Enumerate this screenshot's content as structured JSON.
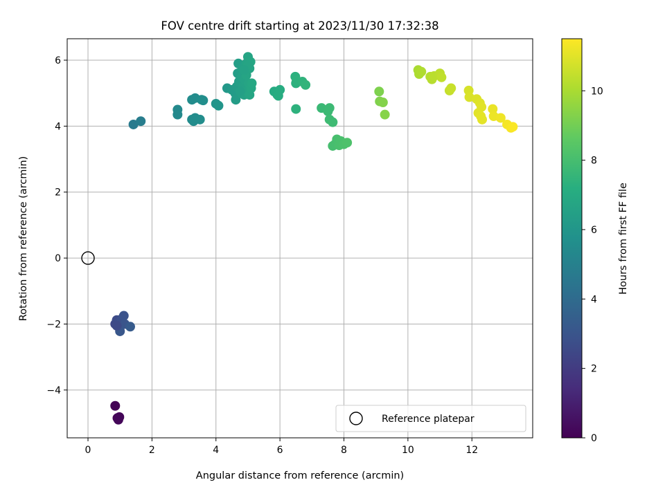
{
  "chart_data": {
    "type": "scatter",
    "title": "FOV centre drift starting at 2023/11/30 17:32:38",
    "xlabel": "Angular distance from reference (arcmin)",
    "ylabel": "Rotation from reference (arcmin)",
    "xlim": [
      -0.65,
      13.9
    ],
    "ylim": [
      -5.45,
      6.65
    ],
    "xticks": [
      0,
      2,
      4,
      6,
      8,
      10,
      12
    ],
    "yticks": [
      -4,
      -2,
      0,
      2,
      4,
      6
    ],
    "xtick_labels": [
      "0",
      "2",
      "4",
      "6",
      "8",
      "10",
      "12"
    ],
    "ytick_labels": [
      "−4",
      "−2",
      "0",
      "2",
      "4",
      "6"
    ],
    "grid": true,
    "legend": {
      "position": "lower-right",
      "entries": [
        "Reference platepar"
      ]
    },
    "reference_point": {
      "x": 0,
      "y": 0,
      "marker": "open-circle"
    },
    "colormap": "viridis",
    "colorbar": {
      "label": "Hours from first FF file",
      "range": [
        0,
        11.5
      ],
      "ticks": [
        0,
        2,
        4,
        6,
        8,
        10
      ],
      "tick_labels": [
        "0",
        "2",
        "4",
        "6",
        "8",
        "10"
      ]
    },
    "points": [
      {
        "x": 0.85,
        "y": -4.48,
        "c": 0.05
      },
      {
        "x": 0.92,
        "y": -4.85,
        "c": 0.1
      },
      {
        "x": 0.98,
        "y": -4.82,
        "c": 0.15
      },
      {
        "x": 0.95,
        "y": -4.9,
        "c": 0.2
      },
      {
        "x": 0.85,
        "y": -2.0,
        "c": 2.5
      },
      {
        "x": 0.9,
        "y": -1.88,
        "c": 2.6
      },
      {
        "x": 0.98,
        "y": -1.95,
        "c": 2.7
      },
      {
        "x": 1.05,
        "y": -1.85,
        "c": 2.8
      },
      {
        "x": 1.12,
        "y": -1.75,
        "c": 2.9
      },
      {
        "x": 1.15,
        "y": -2.0,
        "c": 3.0
      },
      {
        "x": 1.0,
        "y": -2.22,
        "c": 3.1
      },
      {
        "x": 1.32,
        "y": -2.08,
        "c": 3.3
      },
      {
        "x": 0.9,
        "y": -2.05,
        "c": 2.55
      },
      {
        "x": 1.42,
        "y": 4.05,
        "c": 4.7
      },
      {
        "x": 1.65,
        "y": 4.15,
        "c": 4.8
      },
      {
        "x": 2.8,
        "y": 4.5,
        "c": 5.4
      },
      {
        "x": 2.8,
        "y": 4.35,
        "c": 5.4
      },
      {
        "x": 3.25,
        "y": 4.8,
        "c": 5.5
      },
      {
        "x": 3.35,
        "y": 4.85,
        "c": 5.5
      },
      {
        "x": 3.25,
        "y": 4.2,
        "c": 5.45
      },
      {
        "x": 3.3,
        "y": 4.15,
        "c": 5.5
      },
      {
        "x": 3.35,
        "y": 4.25,
        "c": 5.5
      },
      {
        "x": 3.5,
        "y": 4.2,
        "c": 5.55
      },
      {
        "x": 3.55,
        "y": 4.8,
        "c": 5.6
      },
      {
        "x": 3.6,
        "y": 4.78,
        "c": 5.6
      },
      {
        "x": 4.0,
        "y": 4.68,
        "c": 5.9
      },
      {
        "x": 4.08,
        "y": 4.62,
        "c": 5.95
      },
      {
        "x": 4.35,
        "y": 5.15,
        "c": 6.1
      },
      {
        "x": 4.5,
        "y": 5.1,
        "c": 6.2
      },
      {
        "x": 4.6,
        "y": 5.0,
        "c": 6.25
      },
      {
        "x": 4.62,
        "y": 4.8,
        "c": 6.3
      },
      {
        "x": 4.65,
        "y": 5.2,
        "c": 6.3
      },
      {
        "x": 4.68,
        "y": 5.6,
        "c": 6.35
      },
      {
        "x": 4.7,
        "y": 5.9,
        "c": 6.4
      },
      {
        "x": 4.72,
        "y": 5.35,
        "c": 6.4
      },
      {
        "x": 4.78,
        "y": 5.0,
        "c": 6.45
      },
      {
        "x": 4.8,
        "y": 5.5,
        "c": 6.5
      },
      {
        "x": 4.82,
        "y": 5.75,
        "c": 6.5
      },
      {
        "x": 4.85,
        "y": 5.2,
        "c": 6.55
      },
      {
        "x": 4.88,
        "y": 4.95,
        "c": 6.55
      },
      {
        "x": 4.9,
        "y": 5.4,
        "c": 6.6
      },
      {
        "x": 4.92,
        "y": 5.65,
        "c": 6.6
      },
      {
        "x": 4.95,
        "y": 5.9,
        "c": 6.65
      },
      {
        "x": 4.97,
        "y": 5.05,
        "c": 6.65
      },
      {
        "x": 5.0,
        "y": 6.1,
        "c": 6.7
      },
      {
        "x": 5.02,
        "y": 5.3,
        "c": 6.7
      },
      {
        "x": 5.05,
        "y": 4.95,
        "c": 6.75
      },
      {
        "x": 5.05,
        "y": 5.75,
        "c": 6.75
      },
      {
        "x": 5.08,
        "y": 5.95,
        "c": 6.8
      },
      {
        "x": 5.1,
        "y": 5.15,
        "c": 6.8
      },
      {
        "x": 5.12,
        "y": 5.3,
        "c": 6.85
      },
      {
        "x": 4.95,
        "y": 5.55,
        "c": 6.7
      },
      {
        "x": 4.75,
        "y": 5.05,
        "c": 6.45
      },
      {
        "x": 5.0,
        "y": 5.85,
        "c": 6.7
      },
      {
        "x": 4.88,
        "y": 5.7,
        "c": 6.6
      },
      {
        "x": 5.82,
        "y": 5.05,
        "c": 7.0
      },
      {
        "x": 5.92,
        "y": 4.95,
        "c": 7.05
      },
      {
        "x": 6.0,
        "y": 5.1,
        "c": 7.1
      },
      {
        "x": 5.95,
        "y": 4.92,
        "c": 7.1
      },
      {
        "x": 6.48,
        "y": 5.5,
        "c": 7.3
      },
      {
        "x": 6.5,
        "y": 5.3,
        "c": 7.3
      },
      {
        "x": 6.52,
        "y": 5.38,
        "c": 7.35
      },
      {
        "x": 6.7,
        "y": 5.35,
        "c": 7.4
      },
      {
        "x": 6.8,
        "y": 5.25,
        "c": 7.45
      },
      {
        "x": 6.5,
        "y": 4.52,
        "c": 7.35
      },
      {
        "x": 7.3,
        "y": 4.55,
        "c": 7.7
      },
      {
        "x": 7.5,
        "y": 4.45,
        "c": 7.75
      },
      {
        "x": 7.55,
        "y": 4.55,
        "c": 7.75
      },
      {
        "x": 7.55,
        "y": 4.2,
        "c": 7.8
      },
      {
        "x": 7.65,
        "y": 4.12,
        "c": 7.8
      },
      {
        "x": 7.65,
        "y": 3.4,
        "c": 8.0
      },
      {
        "x": 7.72,
        "y": 3.45,
        "c": 8.0
      },
      {
        "x": 7.78,
        "y": 3.6,
        "c": 8.05
      },
      {
        "x": 7.85,
        "y": 3.42,
        "c": 8.1
      },
      {
        "x": 7.9,
        "y": 3.55,
        "c": 8.1
      },
      {
        "x": 8.0,
        "y": 3.45,
        "c": 8.15
      },
      {
        "x": 8.1,
        "y": 3.5,
        "c": 8.2
      },
      {
        "x": 9.1,
        "y": 5.05,
        "c": 9.2
      },
      {
        "x": 9.12,
        "y": 4.75,
        "c": 9.25
      },
      {
        "x": 9.22,
        "y": 4.72,
        "c": 9.3
      },
      {
        "x": 9.28,
        "y": 4.35,
        "c": 9.35
      },
      {
        "x": 10.32,
        "y": 5.7,
        "c": 10.0
      },
      {
        "x": 10.35,
        "y": 5.58,
        "c": 10.05
      },
      {
        "x": 10.42,
        "y": 5.65,
        "c": 10.1
      },
      {
        "x": 10.7,
        "y": 5.5,
        "c": 10.2
      },
      {
        "x": 10.75,
        "y": 5.42,
        "c": 10.25
      },
      {
        "x": 10.82,
        "y": 5.52,
        "c": 10.3
      },
      {
        "x": 11.0,
        "y": 5.6,
        "c": 10.35
      },
      {
        "x": 11.05,
        "y": 5.48,
        "c": 10.4
      },
      {
        "x": 11.3,
        "y": 5.08,
        "c": 10.5
      },
      {
        "x": 11.35,
        "y": 5.15,
        "c": 10.55
      },
      {
        "x": 11.9,
        "y": 5.08,
        "c": 10.8
      },
      {
        "x": 11.92,
        "y": 4.88,
        "c": 10.85
      },
      {
        "x": 12.15,
        "y": 4.82,
        "c": 10.9
      },
      {
        "x": 12.25,
        "y": 4.7,
        "c": 10.95
      },
      {
        "x": 12.3,
        "y": 4.58,
        "c": 11.0
      },
      {
        "x": 12.2,
        "y": 4.4,
        "c": 11.0
      },
      {
        "x": 12.28,
        "y": 4.3,
        "c": 11.05
      },
      {
        "x": 12.32,
        "y": 4.2,
        "c": 11.05
      },
      {
        "x": 12.65,
        "y": 4.52,
        "c": 11.15
      },
      {
        "x": 12.68,
        "y": 4.3,
        "c": 11.2
      },
      {
        "x": 12.9,
        "y": 4.25,
        "c": 11.25
      },
      {
        "x": 13.1,
        "y": 4.05,
        "c": 11.35
      },
      {
        "x": 13.22,
        "y": 3.95,
        "c": 11.4
      },
      {
        "x": 13.28,
        "y": 3.98,
        "c": 11.45
      }
    ]
  }
}
